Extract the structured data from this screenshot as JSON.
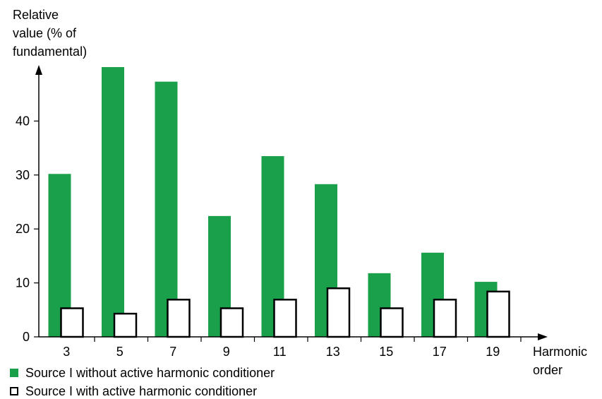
{
  "chart_data": {
    "type": "bar",
    "ylabel": "Relative\nvalue (% of\nfundamental)",
    "xlabel": "Harmonic\norder",
    "categories": [
      "3",
      "5",
      "7",
      "9",
      "11",
      "13",
      "15",
      "17",
      "19"
    ],
    "y_ticks": [
      "0",
      "10",
      "20",
      "30",
      "40"
    ],
    "ylim": [
      0,
      50
    ],
    "grid": false,
    "legend_position": "bottom-left",
    "series": [
      {
        "name": "Source I without active harmonic conditioner",
        "values": [
          30.2,
          50.0,
          47.3,
          22.4,
          33.5,
          28.3,
          11.8,
          15.6,
          10.2
        ],
        "color": "#1aa04a",
        "style": "filled"
      },
      {
        "name": "Source I with active harmonic conditioner",
        "values": [
          5.3,
          4.3,
          6.9,
          5.3,
          6.9,
          9.0,
          5.3,
          6.9,
          8.4
        ],
        "color": "#ffffff",
        "style": "outlined"
      }
    ]
  }
}
